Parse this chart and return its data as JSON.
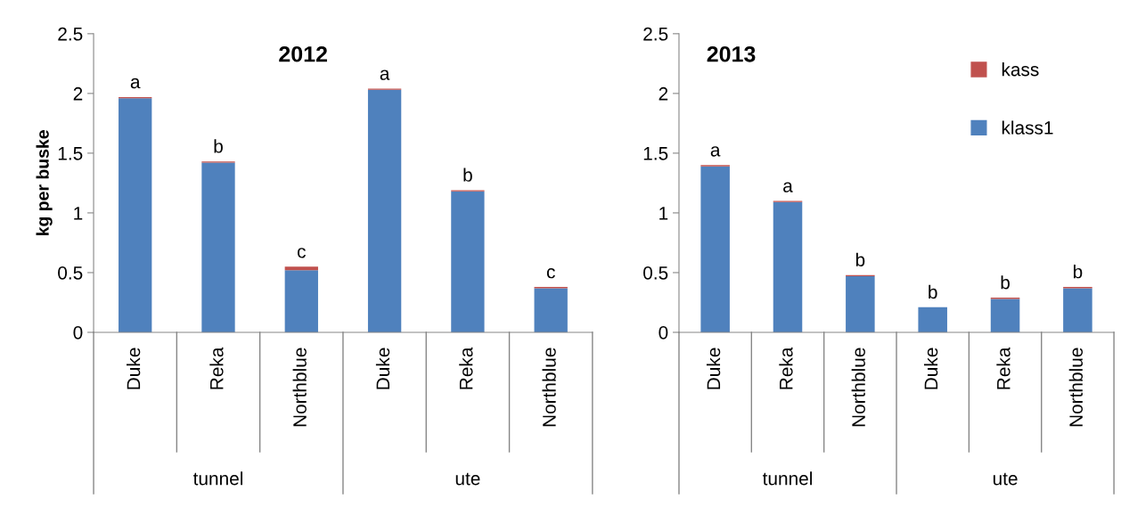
{
  "chart_data": [
    {
      "type": "bar",
      "title": "2012",
      "ylabel": "kg per buske",
      "stacked": true,
      "grid": false,
      "categories": [
        "Duke",
        "Reka",
        "Northblue",
        "Duke",
        "Reka",
        "Northblue"
      ],
      "annotations": [
        "tunnel",
        "ute"
      ],
      "ylim": [
        0,
        2.5
      ],
      "yticks": [
        0,
        0.5,
        1,
        1.5,
        2,
        2.5
      ],
      "series": [
        {
          "color": "#4f81bd",
          "values": [
            1.96,
            1.42,
            0.52,
            2.03,
            1.18,
            0.37
          ]
        },
        {
          "color": "#c0504d",
          "values": [
            0.01,
            0.01,
            0.03,
            0.01,
            0.01,
            0.01
          ],
          "value_labels": [
            "a",
            "b",
            "c",
            "a",
            "b",
            "c"
          ]
        }
      ]
    },
    {
      "type": "bar",
      "title": "2013",
      "stacked": true,
      "legend": "top right",
      "grid": false,
      "categories": [
        "Duke",
        "Reka",
        "Northblue",
        "Duke",
        "Reka",
        "Northblue"
      ],
      "annotations": [
        "tunnel",
        "ute"
      ],
      "ylim": [
        0,
        2.5
      ],
      "yticks": [
        0,
        0.5,
        1,
        1.5,
        2,
        2.5
      ],
      "series": [
        {
          "name": "klass1",
          "color": "#4f81bd",
          "values": [
            1.39,
            1.09,
            0.47,
            0.21,
            0.28,
            0.37
          ]
        },
        {
          "name": "kass",
          "color": "#c0504d",
          "values": [
            0.01,
            0.01,
            0.01,
            0.0,
            0.01,
            0.01
          ],
          "value_labels": [
            "a",
            "a",
            "b",
            "b",
            "b",
            "b"
          ]
        }
      ]
    }
  ]
}
